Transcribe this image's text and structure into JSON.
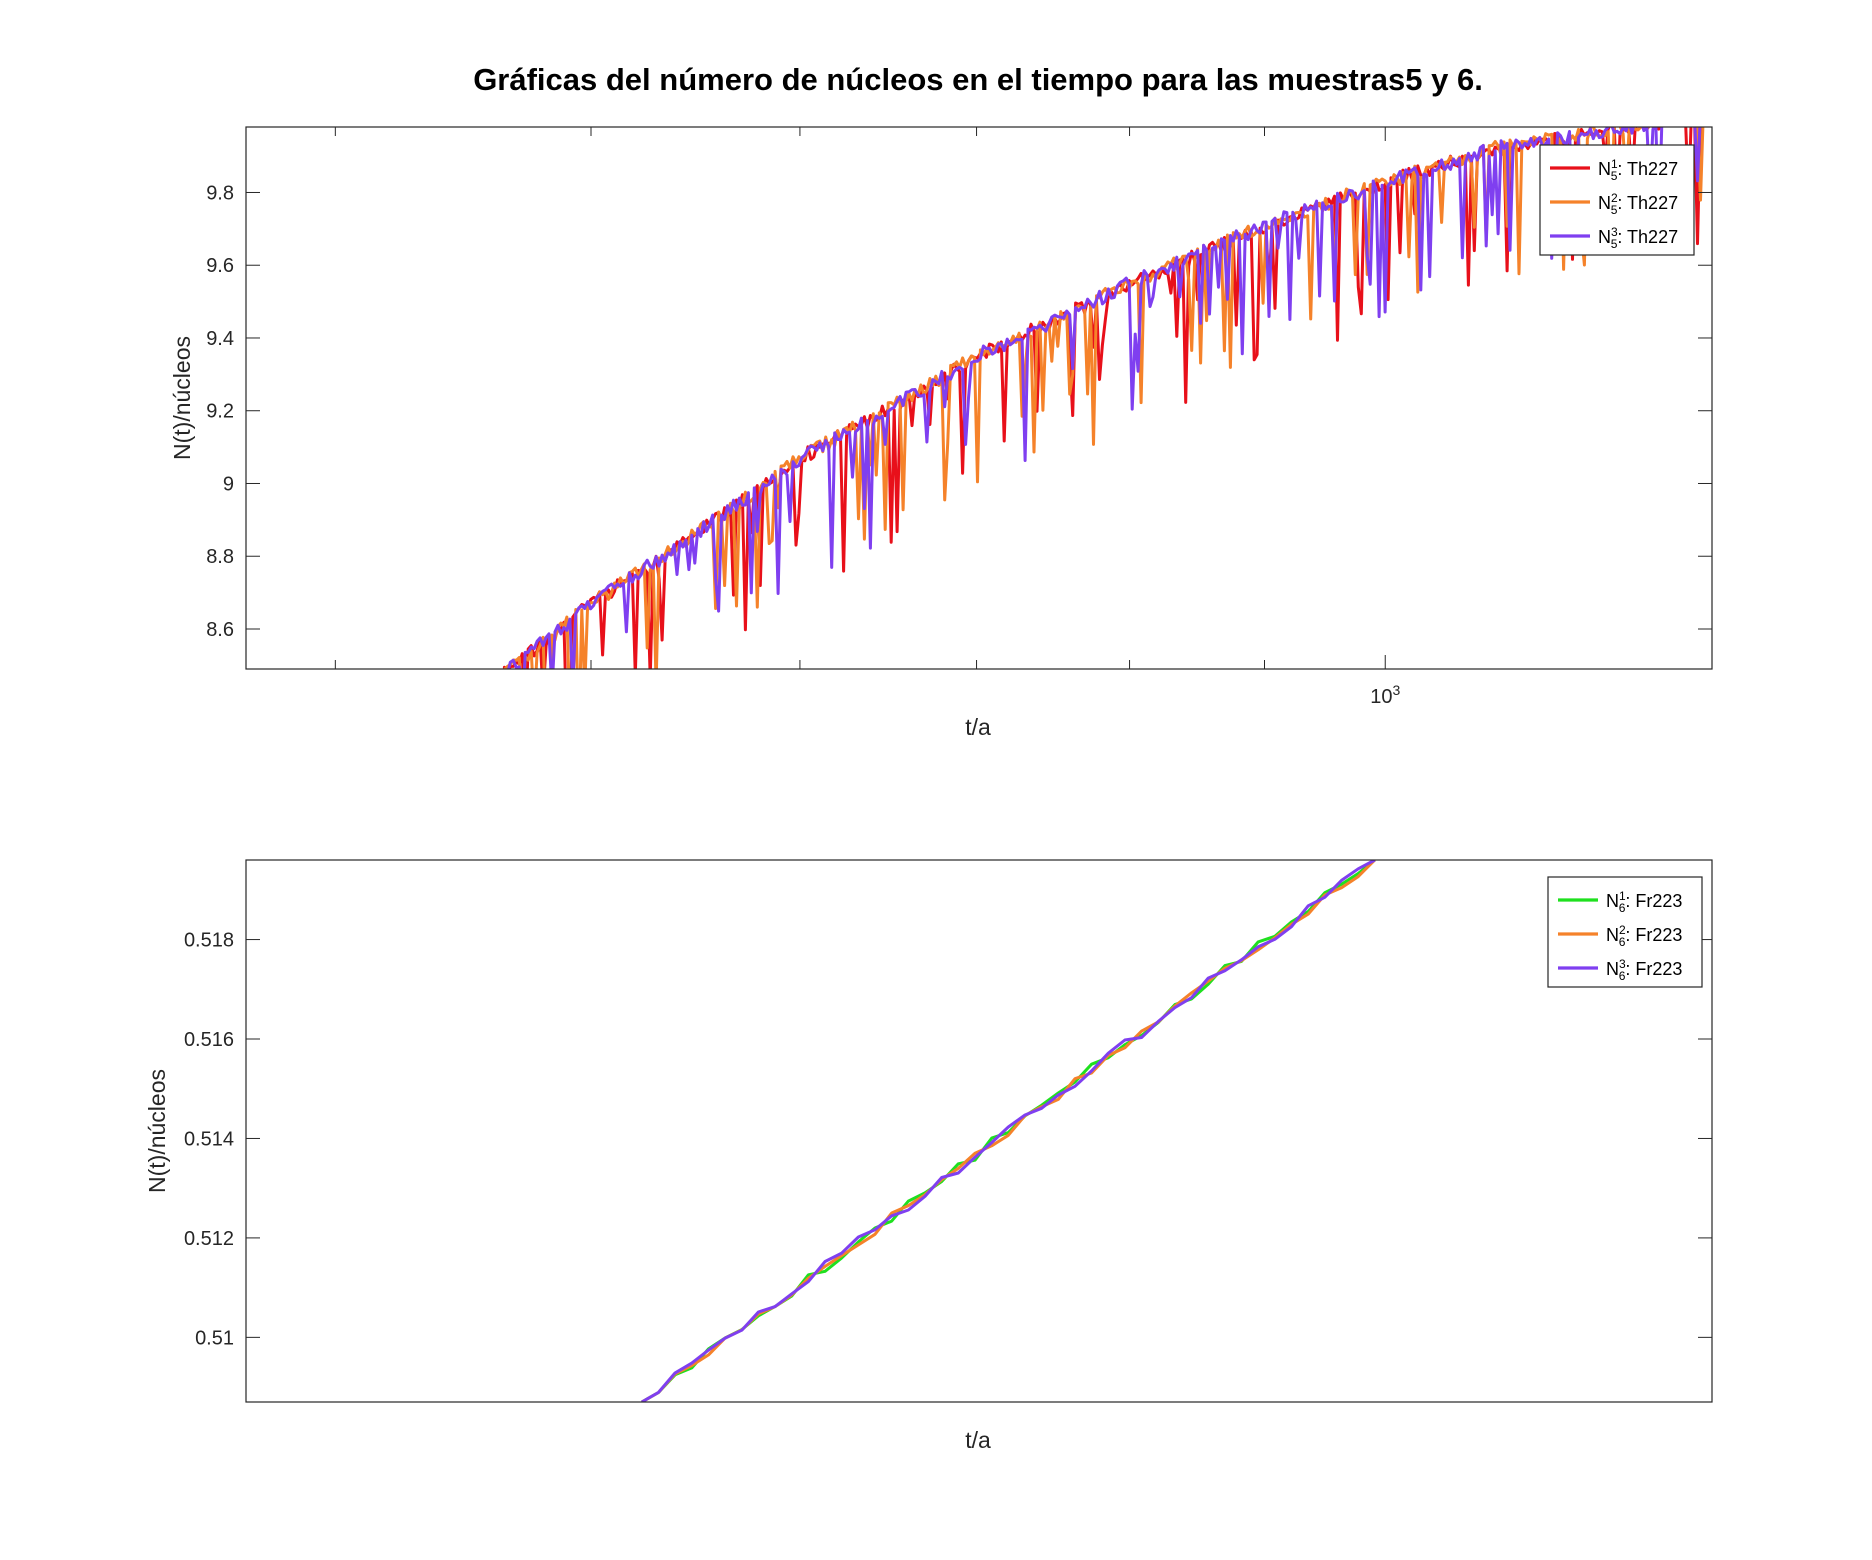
{
  "chart_data": [
    {
      "type": "line",
      "title": "Gráficas del número de núcleos en el tiempo para las muestras5 y 6.",
      "xlabel": "t/a",
      "ylabel": "N(t)/núcleos",
      "x_scale": "log",
      "xlim": [
        370,
        1330
      ],
      "ylim": [
        8.49,
        9.98
      ],
      "y_ticks": [
        "8.6",
        "8.8",
        "9",
        "9.2",
        "9.4",
        "9.6",
        "9.8"
      ],
      "x_tick_label": {
        "base": "10",
        "exp": "3"
      },
      "x_tick_value": 1000,
      "legend_position": "top-right",
      "series": [
        {
          "name_base": "N",
          "name_sup": "1",
          "name_sub": "5",
          "name_rest": ": Th227",
          "color": "#e8101a",
          "seed": 11
        },
        {
          "name_base": "N",
          "name_sup": "2",
          "name_sub": "5",
          "name_rest": ": Th227",
          "color": "#f5822a",
          "seed": 23
        },
        {
          "name_base": "N",
          "name_sup": "3",
          "name_sub": "5",
          "name_rest": ": Th227",
          "color": "#7f3ff0",
          "seed": 37
        }
      ],
      "trend": {
        "t": [
          460,
          500,
          600,
          700,
          800,
          900,
          1000,
          1100,
          1330
        ],
        "N": [
          8.49,
          8.7,
          9.1,
          9.38,
          9.58,
          9.74,
          9.86,
          9.95,
          10.05
        ]
      }
    },
    {
      "type": "line",
      "xlabel": "t/a",
      "ylabel": "N(t)/núcleos",
      "ylim": [
        0.5087,
        0.5196
      ],
      "y_ticks": [
        "0.51",
        "0.512",
        "0.514",
        "0.516",
        "0.518"
      ],
      "legend_position": "top-right",
      "series": [
        {
          "name_base": "N",
          "name_sup": "1",
          "name_sub": "6",
          "name_rest": ": Fr223",
          "color": "#1fe01f",
          "seed": 5
        },
        {
          "name_base": "N",
          "name_sup": "2",
          "name_sub": "6",
          "name_rest": ": Fr223",
          "color": "#f5822a",
          "seed": 17
        },
        {
          "name_base": "N",
          "name_sup": "3",
          "name_sub": "6",
          "name_rest": ": Fr223",
          "color": "#7f3ff0",
          "seed": 29
        }
      ],
      "trend": {
        "x_start_frac": 0.27,
        "x_end_frac": 0.77,
        "N_start": 0.5087,
        "N_end": 0.5196
      }
    }
  ]
}
